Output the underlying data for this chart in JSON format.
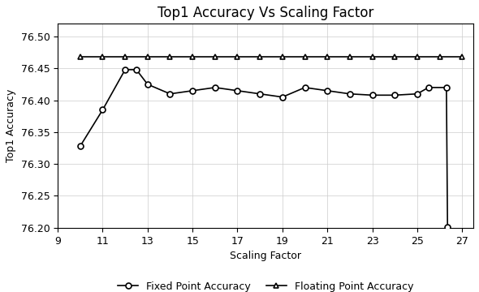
{
  "title": "Top1 Accuracy Vs Scaling Factor",
  "xlabel": "Scaling Factor",
  "ylabel": "Top1 Accuracy",
  "xlim": [
    9,
    27.5
  ],
  "ylim": [
    76.2,
    76.52
  ],
  "xticks": [
    9,
    11,
    13,
    15,
    17,
    19,
    21,
    23,
    25,
    27
  ],
  "yticks": [
    76.2,
    76.25,
    76.3,
    76.35,
    76.4,
    76.45,
    76.5
  ],
  "fixed_point_x": [
    10,
    11,
    12,
    12.5,
    13,
    14,
    15,
    16,
    17,
    18,
    19,
    20,
    21,
    22,
    23,
    24,
    25,
    25.5,
    26.3,
    26.35
  ],
  "fixed_point_y": [
    76.328,
    76.385,
    76.448,
    76.448,
    76.425,
    76.41,
    76.415,
    76.42,
    76.415,
    76.41,
    76.405,
    76.42,
    76.415,
    76.41,
    76.408,
    76.408,
    76.41,
    76.42,
    76.42,
    76.201
  ],
  "floating_point_x": [
    10,
    11,
    12,
    13,
    14,
    15,
    16,
    17,
    18,
    19,
    20,
    21,
    22,
    23,
    24,
    25,
    26,
    27
  ],
  "floating_point_y": [
    76.468,
    76.468,
    76.468,
    76.468,
    76.468,
    76.468,
    76.468,
    76.468,
    76.468,
    76.468,
    76.468,
    76.468,
    76.468,
    76.468,
    76.468,
    76.468,
    76.468,
    76.468
  ],
  "line_color": "black",
  "grid_color": "#cccccc",
  "title_fontsize": 12,
  "label_fontsize": 9,
  "tick_fontsize": 9,
  "legend_fontsize": 9
}
